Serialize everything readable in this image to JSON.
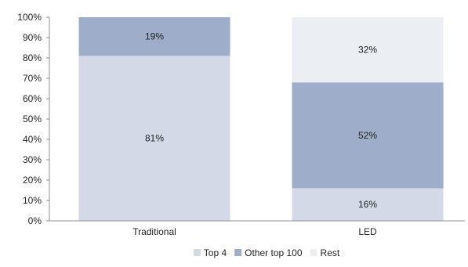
{
  "chart_data": {
    "type": "bar",
    "stacked": true,
    "categories": [
      "Traditional",
      "LED"
    ],
    "series": [
      {
        "name": "Top 4",
        "values": [
          81,
          16
        ],
        "labels": [
          "81%",
          "16%"
        ],
        "color": "#d3d9e6"
      },
      {
        "name": "Other top 100",
        "values": [
          19,
          52
        ],
        "labels": [
          "19%",
          "52%"
        ],
        "color": "#9eadc9"
      },
      {
        "name": "Rest",
        "values": [
          0,
          32
        ],
        "labels": [
          "",
          "32%"
        ],
        "color": "#ebeef3"
      }
    ],
    "y_ticks": [
      "0%",
      "10%",
      "20%",
      "30%",
      "40%",
      "50%",
      "60%",
      "70%",
      "80%",
      "90%",
      "100%"
    ],
    "ylim": [
      0,
      100
    ],
    "title": "",
    "xlabel": "",
    "ylabel": "",
    "grid": false,
    "legend_position": "bottom"
  }
}
